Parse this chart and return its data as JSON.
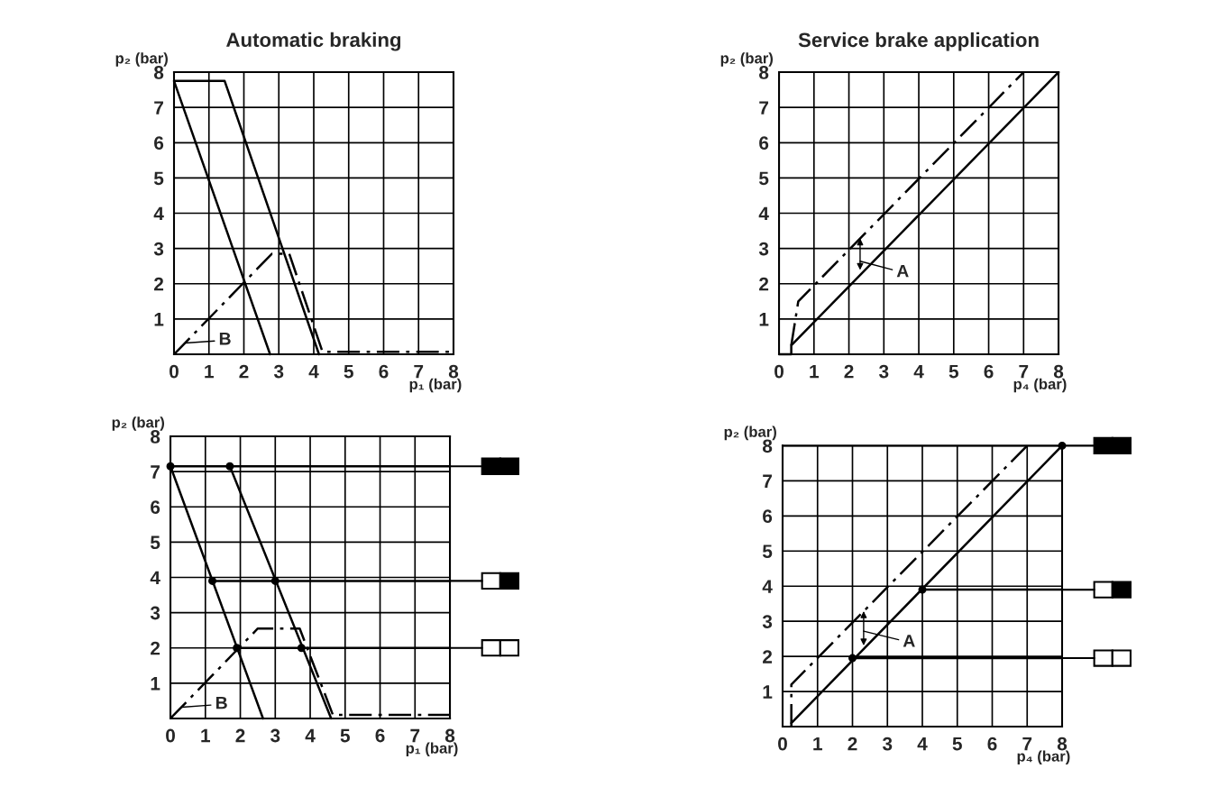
{
  "chart_data": [
    {
      "type": "line",
      "title": "Automatic braking",
      "xlabel": "p₁ (bar)",
      "ylabel": "p₂ (bar)",
      "xlim": [
        0,
        8
      ],
      "ylim": [
        0,
        8
      ],
      "xticks": [
        0,
        1,
        2,
        3,
        4,
        5,
        6,
        7,
        8
      ],
      "yticks": [
        1,
        2,
        3,
        4,
        5,
        6,
        7,
        8
      ],
      "grid": true,
      "series": [
        {
          "type": "line",
          "color": "#000000",
          "line_style": "solid",
          "x": [
            2.75,
            0,
            1.45,
            4.15
          ],
          "values": [
            0,
            7.75,
            7.75,
            0
          ]
        },
        {
          "type": "line",
          "color": "#000000",
          "line_style": "dashdot",
          "x": [
            0,
            2.8,
            3.3,
            4.25,
            8
          ],
          "values": [
            0,
            2.85,
            2.85,
            0.07,
            0.07
          ]
        }
      ],
      "annotations": [
        "B"
      ]
    },
    {
      "type": "line",
      "title": "Service brake application",
      "xlabel": "p₄ (bar)",
      "ylabel": "p₂ (bar)",
      "xlim": [
        0,
        8
      ],
      "ylim": [
        0,
        8
      ],
      "xticks": [
        0,
        1,
        2,
        3,
        4,
        5,
        6,
        7,
        8
      ],
      "yticks": [
        1,
        2,
        3,
        4,
        5,
        6,
        7,
        8
      ],
      "grid": true,
      "series": [
        {
          "type": "line",
          "color": "#000000",
          "line_style": "solid",
          "x": [
            0,
            0.35,
            0.35,
            8
          ],
          "values": [
            0,
            0,
            0.25,
            8
          ]
        },
        {
          "type": "line",
          "color": "#000000",
          "line_style": "dashdot",
          "x": [
            0.35,
            0.55,
            7
          ],
          "values": [
            0.25,
            1.5,
            8
          ]
        }
      ],
      "annotations": [
        "A"
      ]
    },
    {
      "type": "line",
      "xlabel": "p₁ (bar)",
      "ylabel": "p₂ (bar)",
      "xlim": [
        0,
        8
      ],
      "ylim": [
        0,
        8
      ],
      "xticks": [
        0,
        1,
        2,
        3,
        4,
        5,
        6,
        7,
        8
      ],
      "yticks": [
        1,
        2,
        3,
        4,
        5,
        6,
        7,
        8
      ],
      "grid": true,
      "series": [
        {
          "type": "line",
          "color": "#000000",
          "line_style": "solid",
          "x": [
            0,
            2.65
          ],
          "values": [
            7.15,
            0
          ]
        },
        {
          "type": "line",
          "color": "#000000",
          "line_style": "solid",
          "x": [
            1.7,
            4.6
          ],
          "values": [
            7.15,
            0
          ]
        },
        {
          "type": "line",
          "color": "#000000",
          "line_style": "dashdot",
          "x": [
            0,
            2.5,
            3.7,
            4.65,
            8
          ],
          "values": [
            0,
            2.55,
            2.55,
            0.1,
            0.1
          ]
        },
        {
          "type": "line",
          "color": "#000000",
          "line_style": "solid",
          "x": [
            0,
            8
          ],
          "values": [
            7.15,
            7.15
          ]
        },
        {
          "type": "line",
          "color": "#000000",
          "line_style": "solid",
          "x": [
            1.2,
            8
          ],
          "values": [
            3.9,
            3.9
          ]
        },
        {
          "type": "line",
          "color": "#000000",
          "line_style": "solid",
          "x": [
            1.9,
            8
          ],
          "values": [
            2,
            2
          ]
        },
        {
          "type": "scatter",
          "color": "#000000",
          "marker": "circle",
          "x": [
            0,
            1.7,
            1.2,
            3.0,
            1.9,
            3.75
          ],
          "values": [
            7.15,
            7.15,
            3.9,
            3.9,
            2,
            2
          ]
        }
      ],
      "annotations": [
        "B"
      ]
    },
    {
      "type": "line",
      "xlabel": "p₄ (bar)",
      "ylabel": "p₂ (bar)",
      "xlim": [
        0,
        8
      ],
      "ylim": [
        0,
        8
      ],
      "xticks": [
        0,
        1,
        2,
        3,
        4,
        5,
        6,
        7,
        8
      ],
      "yticks": [
        1,
        2,
        3,
        4,
        5,
        6,
        7,
        8
      ],
      "grid": true,
      "series": [
        {
          "type": "line",
          "color": "#000000",
          "line_style": "solid",
          "x": [
            0.25,
            8
          ],
          "values": [
            0.1,
            8
          ]
        },
        {
          "type": "line",
          "color": "#000000",
          "line_style": "dashdot",
          "x": [
            0.25,
            0.25,
            7
          ],
          "values": [
            0,
            1.2,
            8
          ]
        },
        {
          "type": "line",
          "color": "#000000",
          "line_style": "solid",
          "x": [
            4,
            8
          ],
          "values": [
            3.9,
            3.9
          ]
        },
        {
          "type": "line",
          "color": "#000000",
          "line_style": "solid",
          "x": [
            2,
            8
          ],
          "values": [
            1.95,
            1.95
          ]
        },
        {
          "type": "scatter",
          "color": "#000000",
          "marker": "circle",
          "x": [
            2,
            4,
            8
          ],
          "values": [
            1.95,
            3.9,
            8
          ]
        }
      ],
      "annotations": [
        "A"
      ]
    }
  ]
}
